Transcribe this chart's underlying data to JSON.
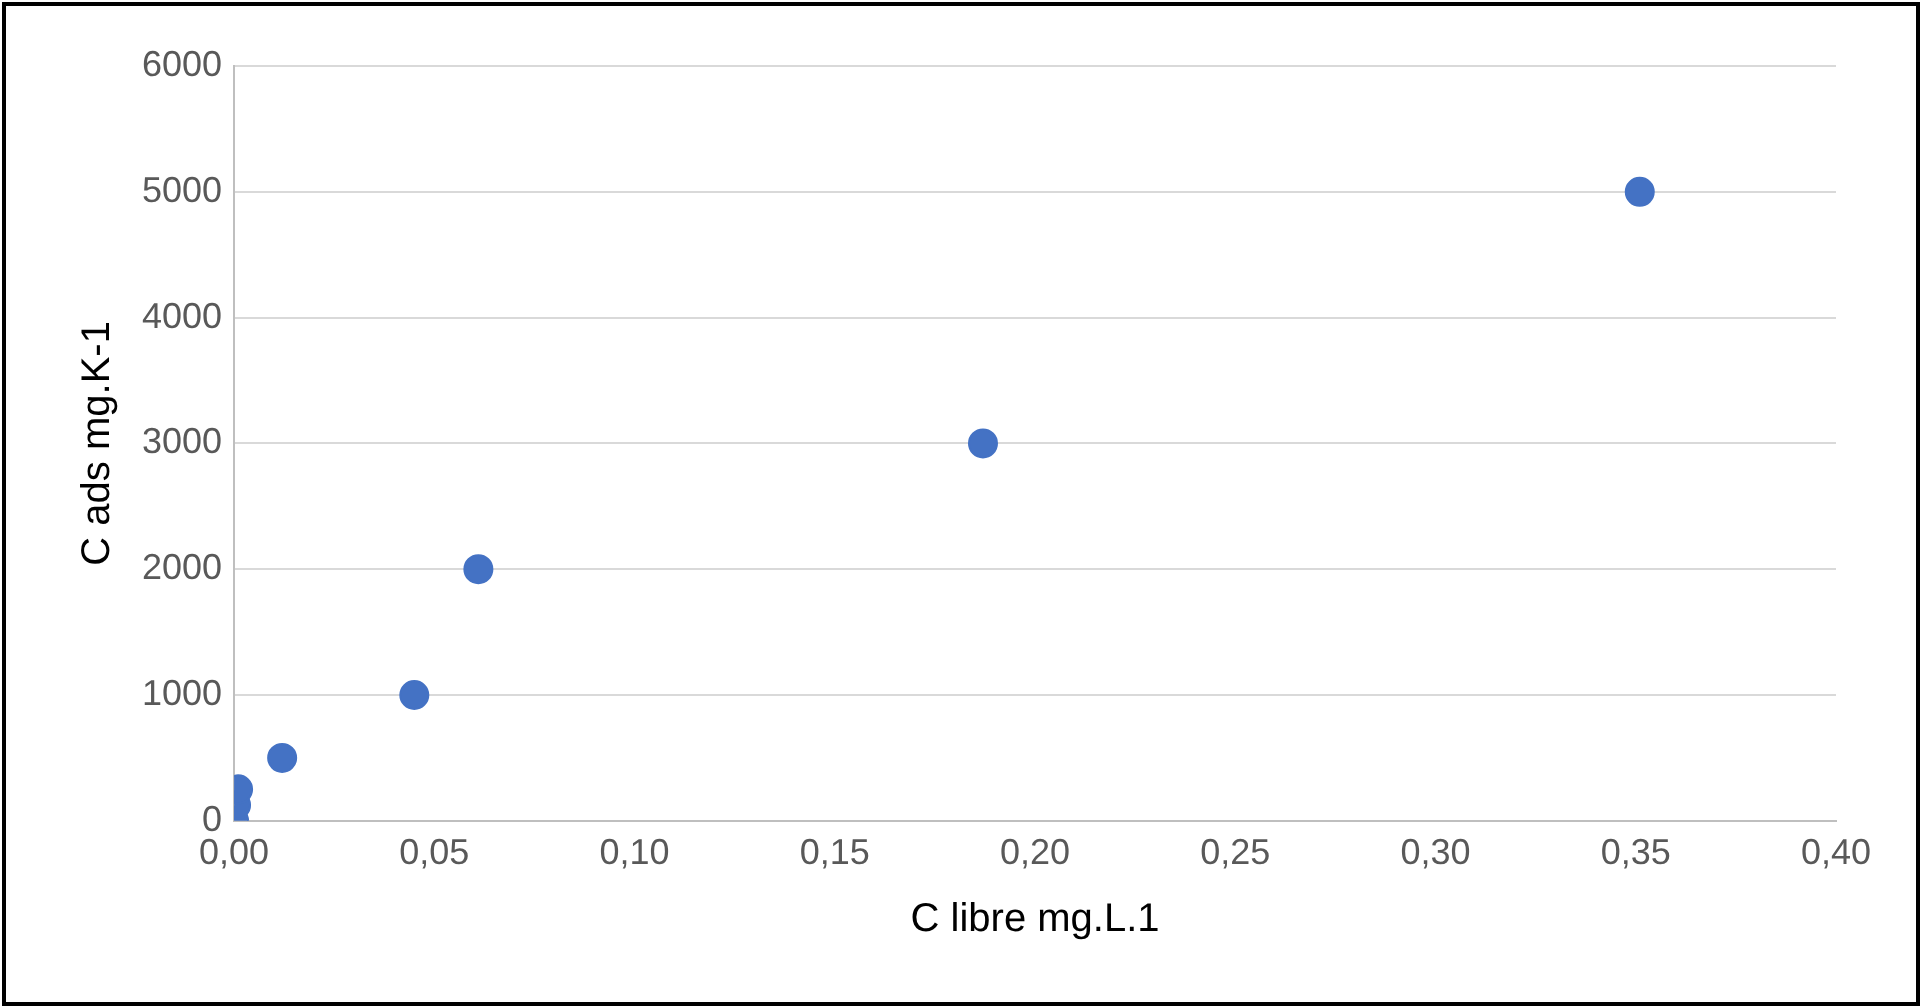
{
  "chart_data": {
    "type": "scatter",
    "xlabel": "C libre mg.L.1",
    "ylabel": "C ads mg.K-1",
    "x": [
      0,
      0.0005,
      0.001,
      0.012,
      0.045,
      0.061,
      0.187,
      0.351
    ],
    "series": [
      {
        "color": "#4472c4",
        "values": [
          0,
          125,
          250,
          500,
          1000,
          2000,
          3000,
          5000
        ]
      }
    ],
    "xlim": [
      0,
      0.4
    ],
    "xticks": [
      {
        "value": 0,
        "label": "0,00"
      },
      {
        "value": 0.05,
        "label": "0,05"
      },
      {
        "value": 0.1,
        "label": "0,10"
      },
      {
        "value": 0.15,
        "label": "0,15"
      },
      {
        "value": 0.2,
        "label": "0,20"
      },
      {
        "value": 0.25,
        "label": "0,25"
      },
      {
        "value": 0.3,
        "label": "0,30"
      },
      {
        "value": 0.35,
        "label": "0,35"
      },
      {
        "value": 0.4,
        "label": "0,40"
      }
    ],
    "ylim": [
      0,
      6000
    ],
    "yticks": [
      0,
      1000,
      2000,
      3000,
      4000,
      5000,
      6000
    ],
    "grid": "y",
    "legend": false,
    "marker": "circle"
  }
}
